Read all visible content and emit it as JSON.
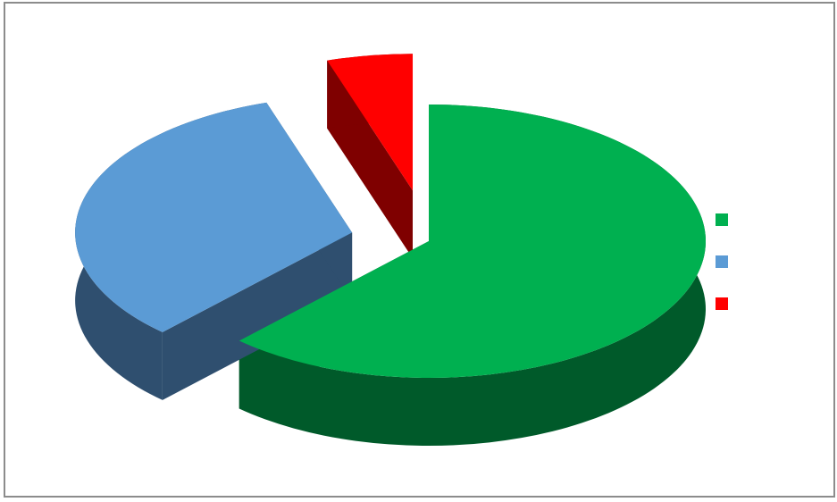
{
  "chart_data": {
    "type": "pie",
    "style": "3d-exploded",
    "title": "",
    "slices": [
      {
        "label": "",
        "value": 62,
        "color": "#00b050",
        "side_color": "#005a2a"
      },
      {
        "label": "",
        "value": 33,
        "color": "#5b9bd5",
        "side_color": "#2f4f6f"
      },
      {
        "label": "",
        "value": 5,
        "color": "#ff0000",
        "side_color": "#7f0000"
      }
    ],
    "legend": {
      "position": "right"
    }
  }
}
